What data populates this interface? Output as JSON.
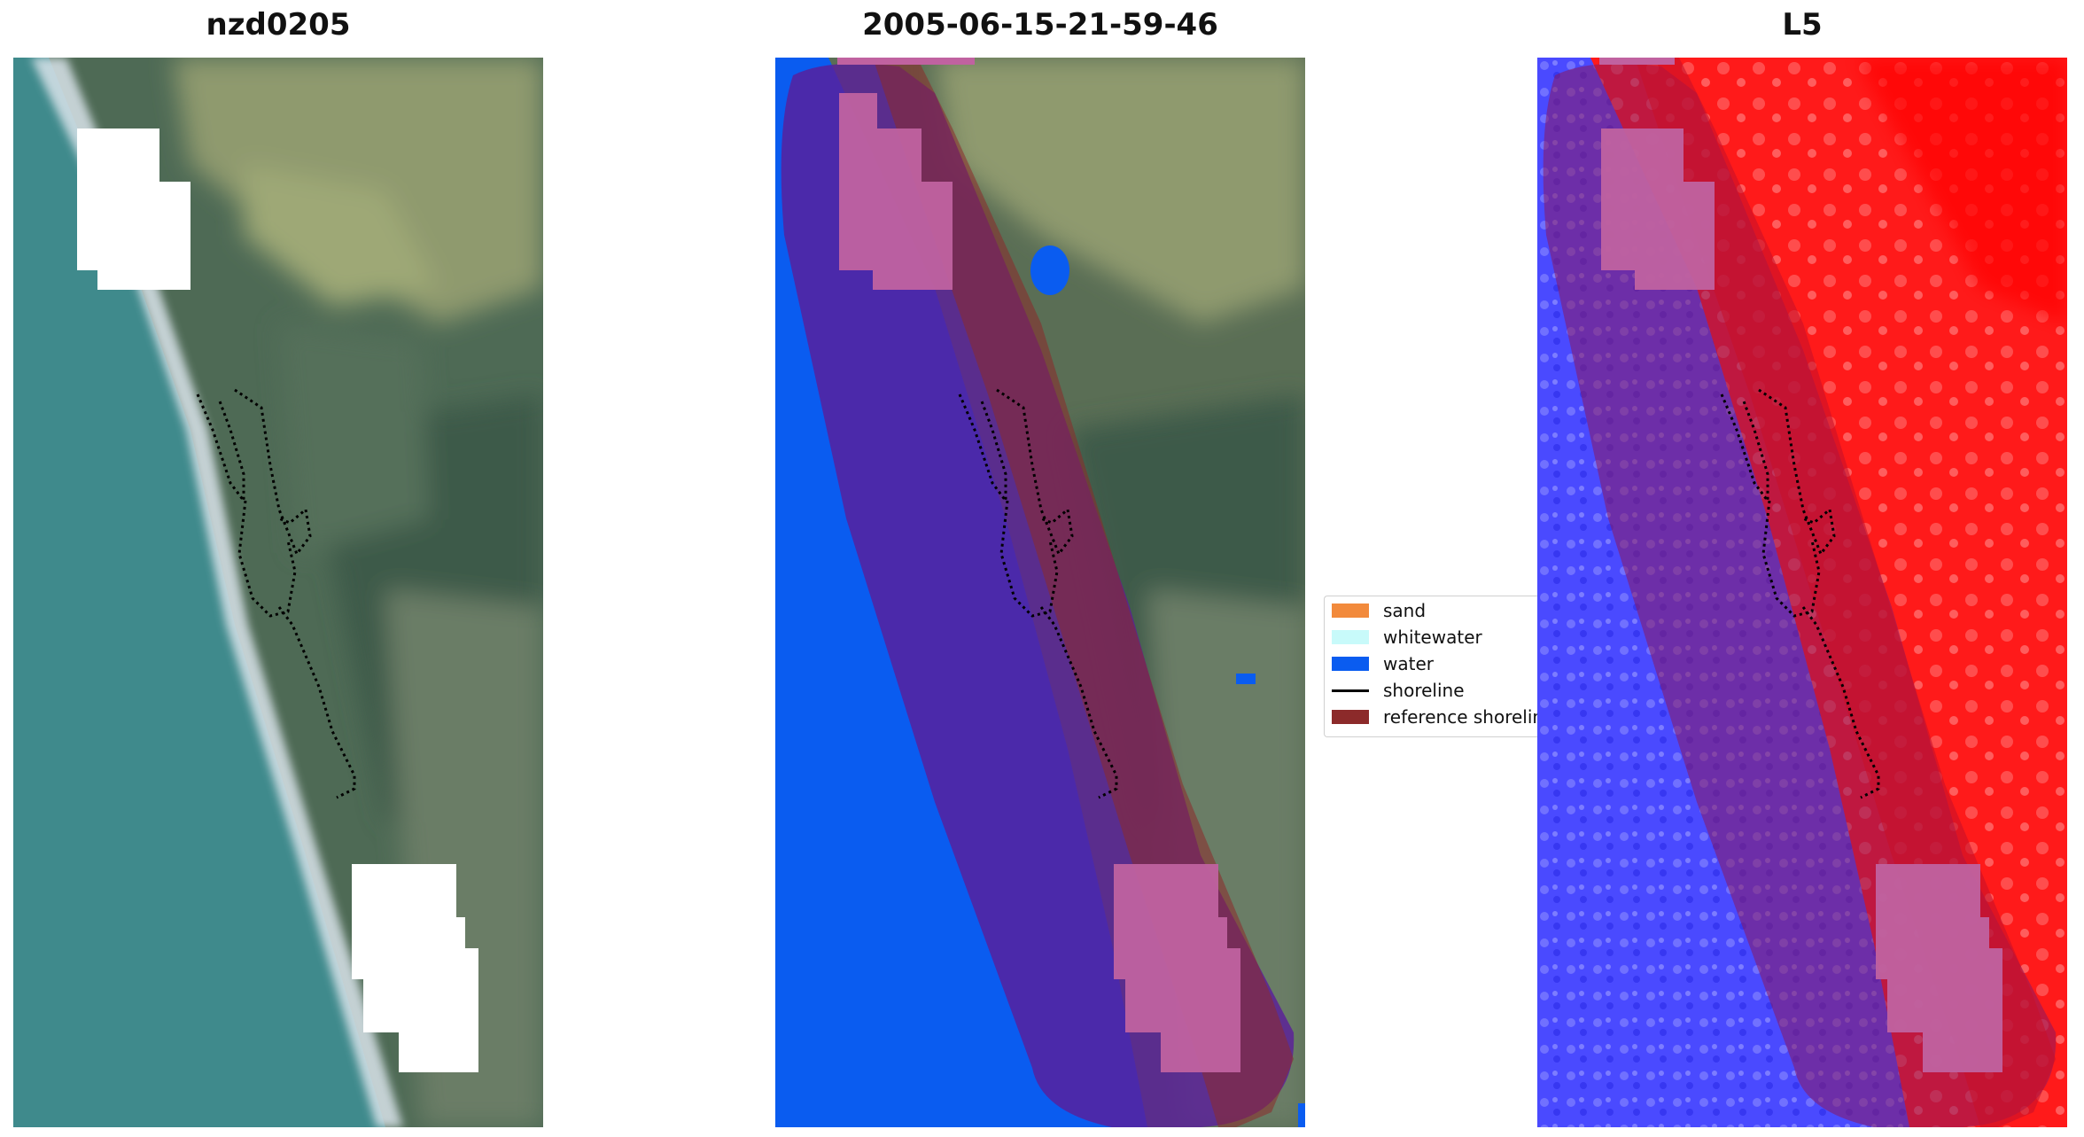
{
  "panels": [
    {
      "title": "nzd0205"
    },
    {
      "title": "2005-06-15-21-59-46"
    },
    {
      "title": "L5"
    }
  ],
  "legend": {
    "items": [
      {
        "label": "sand",
        "color": "#f28a3c",
        "kind": "patch"
      },
      {
        "label": "whitewater",
        "color": "#c8fafa",
        "kind": "patch"
      },
      {
        "label": "water",
        "color": "#0a5cf0",
        "kind": "patch"
      },
      {
        "label": "shoreline",
        "color": "#000000",
        "kind": "line"
      },
      {
        "label": "reference shoreline",
        "color": "#8c2a2a",
        "kind": "patch"
      }
    ]
  },
  "colors": {
    "ocean": "#3f8a8c",
    "surf": "#dfe8ee",
    "cloud_mask": "#ffffff",
    "water_class": "#0a5cf0",
    "buffer_overlay": "#5a1e9a",
    "cloud_overlay": "#c062a0",
    "index_positive": "#ff0a14",
    "index_negative": "#3b3bff"
  }
}
